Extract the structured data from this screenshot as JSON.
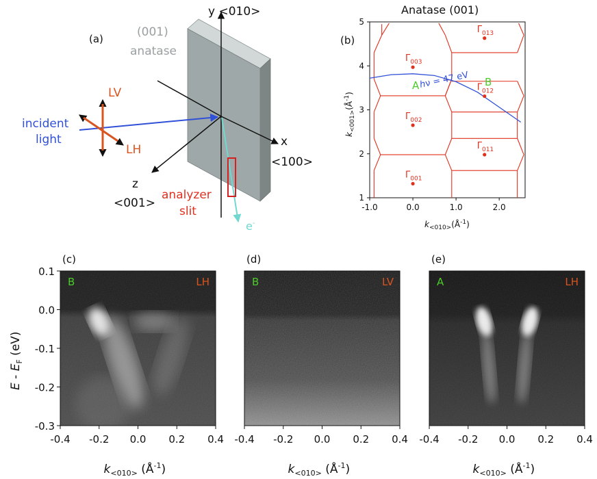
{
  "colors": {
    "red": "#e0301e",
    "orange": "#d9541e",
    "blue": "#3050d8",
    "cyan": "#70d8d0",
    "green": "#4ccc2a",
    "gray": "#9aa0a0",
    "slab_front": "#9fa8a8",
    "slab_side": "#7d8585",
    "slab_top": "#d2d8d8",
    "ldark": "#111111"
  },
  "panel_a": {
    "label": "(a)",
    "sample_line1": "(001)",
    "sample_line2": "anatase",
    "axis_y": "y <010>",
    "axis_x": "x",
    "axis_x_dir": "<100>",
    "axis_z": "z",
    "axis_z_dir": "<001>",
    "lv": "LV",
    "lh": "LH",
    "incident_line1": "incident",
    "incident_line2": "light",
    "analyzer_line1": "analyzer",
    "analyzer_line2": "slit",
    "electron": "e",
    "electron_sup": "-"
  },
  "panel_b": {
    "label": "(b)",
    "title": "Anatase (001)",
    "ylabel_k": "k",
    "ylabel_sub": "<001>",
    "ylabel_unit": "(Å",
    "ylabel_exp": "-1",
    "xlabel_k": "k",
    "xlabel_sub": "<010>",
    "xlabel_unit": "(Å",
    "xlabel_exp": "-1",
    "photon_h": "h",
    "photon_rest": "ν = 47 eV",
    "point_a": "A",
    "point_b": "B",
    "gamma": "Γ",
    "chart_data": {
      "type": "scatter",
      "title": "Anatase (001)",
      "xlim": [
        -1.0,
        2.6
      ],
      "ylim": [
        1.0,
        5.0
      ],
      "xticks": [
        "-1.0",
        "0.0",
        "1.0",
        "2.0"
      ],
      "xtick_values": [
        -1.0,
        0.0,
        1.0,
        2.0
      ],
      "yticks": [
        "1",
        "2",
        "3",
        "4",
        "5"
      ],
      "ytick_values": [
        1,
        2,
        3,
        4,
        5
      ],
      "points": [
        {
          "label": "001",
          "x": 0.0,
          "y": 1.32
        },
        {
          "label": "002",
          "x": 0.0,
          "y": 2.65
        },
        {
          "label": "003",
          "x": 0.0,
          "y": 3.97
        },
        {
          "label": "011",
          "x": 1.66,
          "y": 1.98
        },
        {
          "label": "012",
          "x": 1.66,
          "y": 3.31
        },
        {
          "label": "013",
          "x": 1.66,
          "y": 4.63
        }
      ],
      "arc_label": "hν = 47 eV",
      "arc": [
        [
          -1.0,
          3.72
        ],
        [
          -0.5,
          3.8
        ],
        [
          0.0,
          3.82
        ],
        [
          0.5,
          3.78
        ],
        [
          1.0,
          3.64
        ],
        [
          1.5,
          3.4
        ],
        [
          2.0,
          3.06
        ],
        [
          2.5,
          2.72
        ]
      ]
    }
  },
  "arpes": {
    "ylabel_e": "E",
    "ylabel_mid": " - ",
    "ylabel_ef": "E",
    "ylabel_sub": "F",
    "ylabel_unit": " (eV)",
    "xlabel_k": "k",
    "xlabel_sub": "<010>",
    "xlabel_unit": " (Å",
    "xlabel_exp": "-1",
    "xticks": [
      "-0.4",
      "-0.2",
      "0.0",
      "0.2",
      "0.4"
    ],
    "xtick_values": [
      -0.4,
      -0.2,
      0.0,
      0.2,
      0.4
    ],
    "yticks": [
      "0.1",
      "0.0",
      "-0.1",
      "-0.2",
      "-0.3"
    ],
    "ytick_values": [
      0.1,
      0.0,
      -0.1,
      -0.2,
      -0.3
    ],
    "xlim": [
      -0.4,
      0.4
    ],
    "ylim": [
      -0.3,
      0.1
    ],
    "panels": [
      {
        "label": "(c)",
        "point": "B",
        "pol": "LH"
      },
      {
        "label": "(d)",
        "point": "B",
        "pol": "LV"
      },
      {
        "label": "(e)",
        "point": "A",
        "pol": "LH"
      }
    ]
  }
}
